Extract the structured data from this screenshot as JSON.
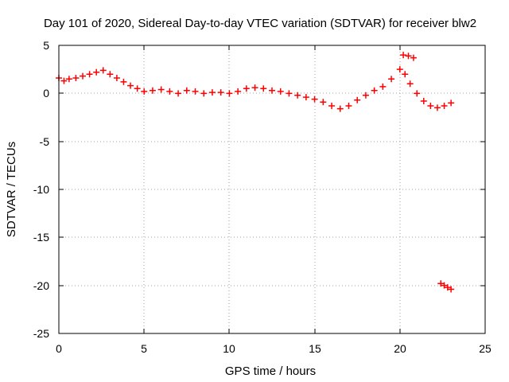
{
  "chart_data": {
    "type": "scatter",
    "title": "Day 101 of 2020, Sidereal Day-to-day VTEC variation (SDTVAR) for receiver blw2",
    "xlabel": "GPS time / hours",
    "ylabel": "SDTVAR / TECUs",
    "xlim": [
      0,
      25
    ],
    "ylim": [
      -25,
      5
    ],
    "xticks": [
      "0",
      "5",
      "10",
      "15",
      "20",
      "25"
    ],
    "yticks": [
      "5",
      "0",
      "-5",
      "-10",
      "-15",
      "-20",
      "-25"
    ],
    "grid": true,
    "marker": "+",
    "series": [
      {
        "name": "blw2",
        "color": "#ff0000",
        "x": [
          0.0,
          0.3,
          0.6,
          1.0,
          1.4,
          1.8,
          2.2,
          2.6,
          3.0,
          3.4,
          3.8,
          4.2,
          4.6,
          5.0,
          5.5,
          6.0,
          6.5,
          7.0,
          7.5,
          8.0,
          8.5,
          9.0,
          9.5,
          10.0,
          10.5,
          11.0,
          11.5,
          12.0,
          12.5,
          13.0,
          13.5,
          14.0,
          14.5,
          15.0,
          15.5,
          16.0,
          16.5,
          17.0,
          17.5,
          18.0,
          18.5,
          19.0,
          19.5,
          20.0,
          20.3,
          20.6,
          21.0,
          21.4,
          21.8,
          22.2,
          22.6,
          23.0,
          20.2,
          20.5,
          20.8,
          22.4,
          22.6,
          22.8,
          23.0
        ],
        "y": [
          1.6,
          1.3,
          1.5,
          1.6,
          1.8,
          2.0,
          2.2,
          2.4,
          2.0,
          1.6,
          1.2,
          0.8,
          0.5,
          0.2,
          0.3,
          0.4,
          0.2,
          0.0,
          0.3,
          0.2,
          0.0,
          0.1,
          0.1,
          0.0,
          0.2,
          0.5,
          0.6,
          0.5,
          0.3,
          0.2,
          0.0,
          -0.2,
          -0.4,
          -0.6,
          -0.9,
          -1.3,
          -1.6,
          -1.3,
          -0.7,
          -0.2,
          0.3,
          0.7,
          1.5,
          2.5,
          2.0,
          1.0,
          0.0,
          -0.8,
          -1.3,
          -1.5,
          -1.3,
          -1.0,
          4.0,
          3.9,
          3.7,
          -19.8,
          -20.0,
          -20.2,
          -20.4
        ]
      }
    ]
  }
}
